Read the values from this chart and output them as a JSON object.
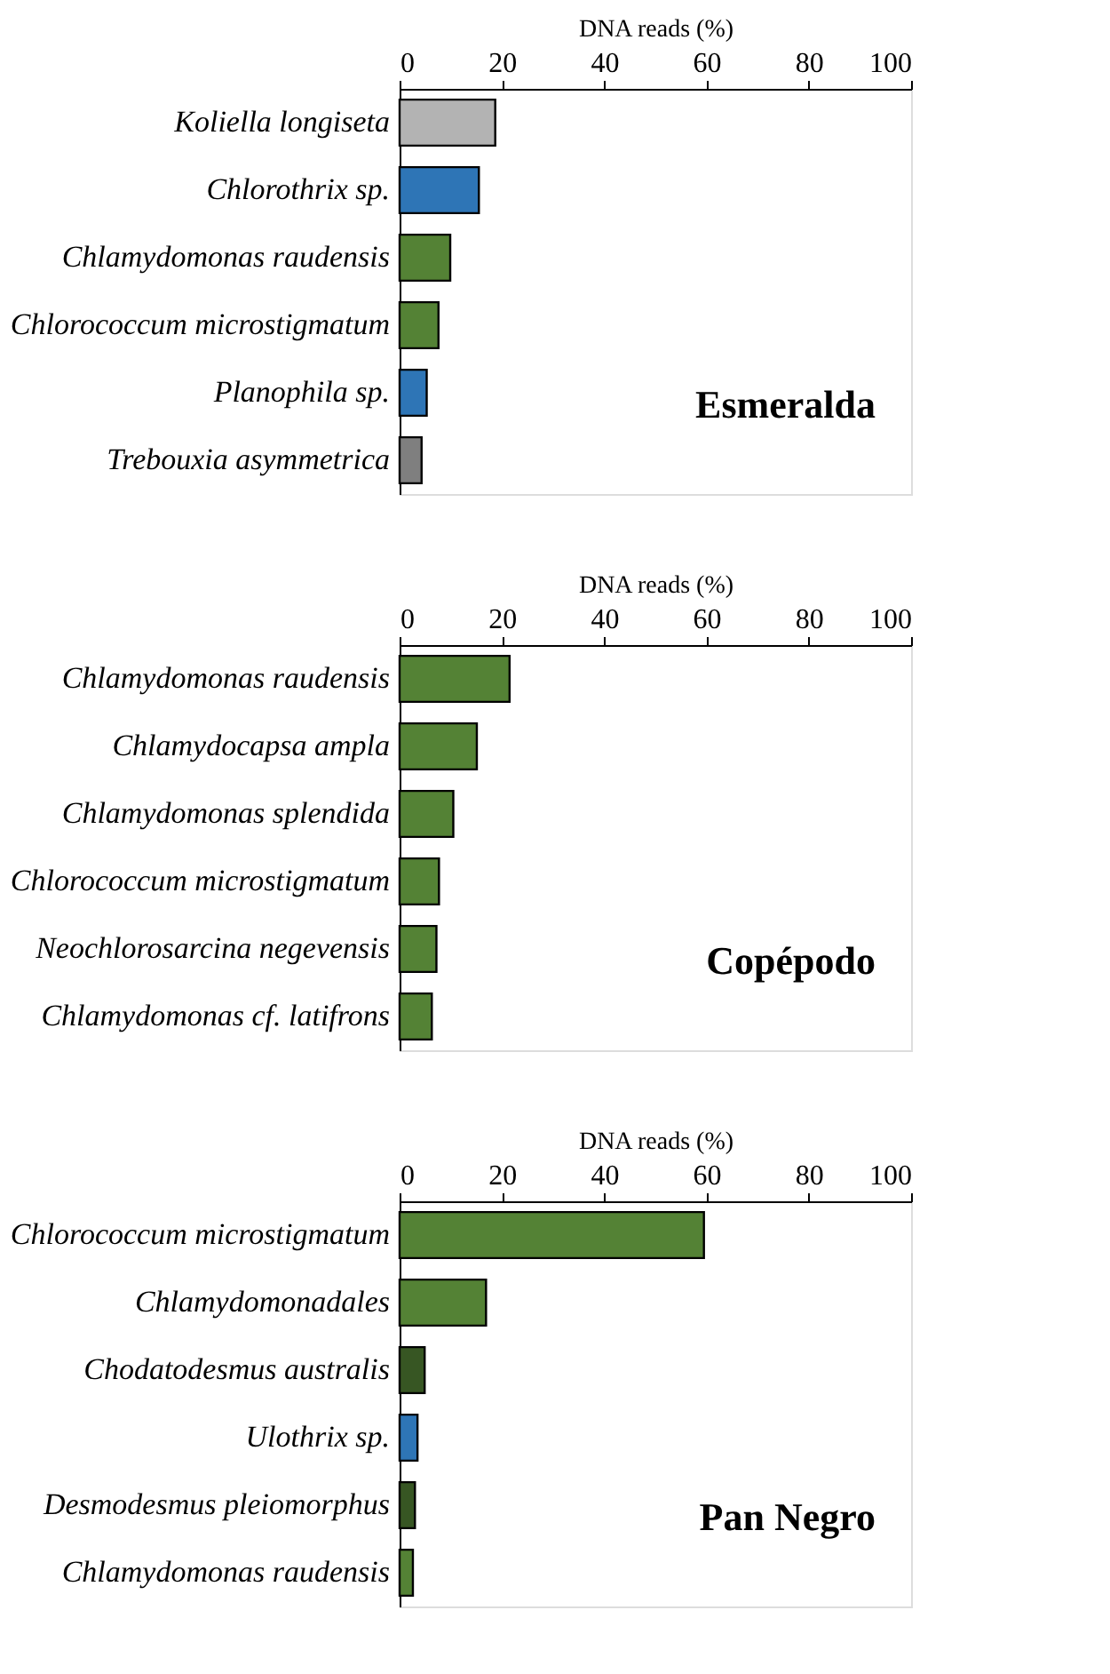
{
  "chart_data": [
    {
      "type": "bar",
      "orientation": "horizontal",
      "title": "Esmeralda",
      "xlabel": "DNA reads (%)",
      "categories": [
        "Koliella longiseta",
        "Chlorothrix sp.",
        "Chlamydomonas raudensis",
        "Chlorococcum microstigmatum",
        "Planophila sp.",
        "Trebouxia asymmetrica"
      ],
      "values": [
        18.7,
        15.5,
        9.9,
        7.6,
        5.3,
        4.3
      ],
      "colors": [
        "#b3b3b3",
        "#2e75b6",
        "#548235",
        "#548235",
        "#2e75b6",
        "#7f7f7f"
      ],
      "xlim": [
        0,
        100
      ],
      "xticks": [
        0,
        20,
        40,
        60,
        80,
        100
      ],
      "grid": false
    },
    {
      "type": "bar",
      "orientation": "horizontal",
      "title": "Copépodo",
      "xlabel": "DNA reads (%)",
      "categories": [
        "Chlamydomonas raudensis",
        "Chlamydocapsa ampla",
        "Chlamydomonas splendida",
        "Chlorococcum microstigmatum",
        "Neochlorosarcina negevensis",
        "Chlamydomonas cf. latifrons"
      ],
      "values": [
        21.5,
        15.1,
        10.5,
        7.7,
        7.2,
        6.3
      ],
      "colors": [
        "#548235",
        "#548235",
        "#548235",
        "#548235",
        "#548235",
        "#548235"
      ],
      "xlim": [
        0,
        100
      ],
      "xticks": [
        0,
        20,
        40,
        60,
        80,
        100
      ],
      "grid": false
    },
    {
      "type": "bar",
      "orientation": "horizontal",
      "title": "Pan Negro",
      "xlabel": "DNA reads (%)",
      "categories": [
        "Chlorococcum microstigmatum",
        "Chlamydomonadales",
        "Chodatodesmus australis",
        "Ulothrix sp.",
        "Desmodesmus pleiomorphus",
        "Chlamydomonas raudensis"
      ],
      "values": [
        59.5,
        16.9,
        4.9,
        3.5,
        3.0,
        2.6
      ],
      "colors": [
        "#548235",
        "#548235",
        "#375623",
        "#2e75b6",
        "#375623",
        "#548235"
      ],
      "xlim": [
        0,
        100
      ],
      "xticks": [
        0,
        20,
        40,
        60,
        80,
        100
      ],
      "grid": false
    }
  ]
}
